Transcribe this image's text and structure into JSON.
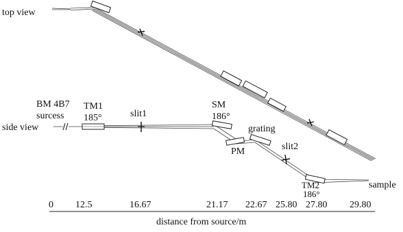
{
  "views": {
    "top": "top view",
    "side": "side view"
  },
  "labels": {
    "source_line1": "BM 4B7",
    "source_line2": "surcess",
    "tm1": "TM1",
    "tm1_angle": "185°",
    "slit1": "slit1",
    "sm": "SM",
    "sm_angle": "186°",
    "grating": "grating",
    "pm": "PM",
    "slit2": "slit2",
    "tm2": "TM2",
    "tm2_angle": "186°",
    "sample": "sample"
  },
  "axis": {
    "ticks": [
      "0",
      "12.5",
      "16.67",
      "21.17",
      "22.67",
      "25.80",
      "27.80",
      "29.80"
    ],
    "label": "distance from source/m"
  }
}
